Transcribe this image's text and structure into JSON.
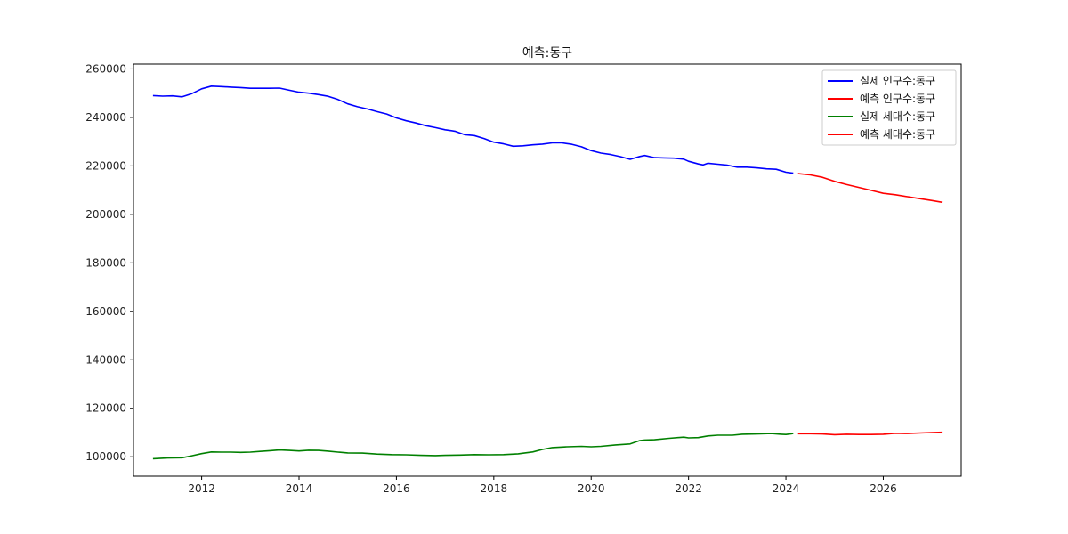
{
  "chart_data": {
    "type": "line",
    "title": "예측:동구",
    "xlabel": "",
    "ylabel": "",
    "xlim": [
      2010.6,
      2027.6
    ],
    "ylim": [
      92000,
      262000
    ],
    "x_ticks": [
      2012,
      2014,
      2016,
      2018,
      2020,
      2022,
      2024,
      2026
    ],
    "x_tick_labels": [
      "2012",
      "2014",
      "2016",
      "2018",
      "2020",
      "2022",
      "2024",
      "2026"
    ],
    "y_ticks": [
      100000,
      120000,
      140000,
      160000,
      180000,
      200000,
      220000,
      240000,
      260000
    ],
    "y_tick_labels": [
      "100000",
      "120000",
      "140000",
      "160000",
      "180000",
      "200000",
      "220000",
      "240000",
      "260000"
    ],
    "grid": false,
    "legend_position": "top-right",
    "series": [
      {
        "name": "실제 인구수:동구",
        "color": "#0000ff",
        "points": [
          [
            2011.0,
            249000
          ],
          [
            2011.2,
            248800
          ],
          [
            2011.4,
            248900
          ],
          [
            2011.6,
            248500
          ],
          [
            2011.8,
            249800
          ],
          [
            2012.0,
            251800
          ],
          [
            2012.2,
            252900
          ],
          [
            2012.4,
            252700
          ],
          [
            2012.6,
            252500
          ],
          [
            2012.8,
            252300
          ],
          [
            2013.0,
            252000
          ],
          [
            2013.2,
            252000
          ],
          [
            2013.4,
            252000
          ],
          [
            2013.6,
            252100
          ],
          [
            2013.8,
            251200
          ],
          [
            2014.0,
            250400
          ],
          [
            2014.2,
            250000
          ],
          [
            2014.4,
            249400
          ],
          [
            2014.6,
            248700
          ],
          [
            2014.8,
            247400
          ],
          [
            2015.0,
            245600
          ],
          [
            2015.2,
            244400
          ],
          [
            2015.4,
            243500
          ],
          [
            2015.6,
            242400
          ],
          [
            2015.8,
            241400
          ],
          [
            2016.0,
            239800
          ],
          [
            2016.2,
            238600
          ],
          [
            2016.4,
            237700
          ],
          [
            2016.6,
            236600
          ],
          [
            2016.8,
            235800
          ],
          [
            2017.0,
            234900
          ],
          [
            2017.2,
            234300
          ],
          [
            2017.4,
            232900
          ],
          [
            2017.6,
            232500
          ],
          [
            2017.8,
            231300
          ],
          [
            2018.0,
            229800
          ],
          [
            2018.2,
            229100
          ],
          [
            2018.4,
            228100
          ],
          [
            2018.6,
            228300
          ],
          [
            2018.8,
            228700
          ],
          [
            2019.0,
            229000
          ],
          [
            2019.2,
            229500
          ],
          [
            2019.4,
            229500
          ],
          [
            2019.6,
            228900
          ],
          [
            2019.8,
            227900
          ],
          [
            2020.0,
            226300
          ],
          [
            2020.2,
            225300
          ],
          [
            2020.4,
            224700
          ],
          [
            2020.6,
            223800
          ],
          [
            2020.8,
            222700
          ],
          [
            2021.0,
            223900
          ],
          [
            2021.1,
            224300
          ],
          [
            2021.3,
            223400
          ],
          [
            2021.5,
            223300
          ],
          [
            2021.7,
            223200
          ],
          [
            2021.9,
            222800
          ],
          [
            2022.0,
            221900
          ],
          [
            2022.2,
            220800
          ],
          [
            2022.3,
            220400
          ],
          [
            2022.4,
            221100
          ],
          [
            2022.6,
            220700
          ],
          [
            2022.8,
            220300
          ],
          [
            2023.0,
            219500
          ],
          [
            2023.2,
            219500
          ],
          [
            2023.4,
            219200
          ],
          [
            2023.6,
            218800
          ],
          [
            2023.8,
            218600
          ],
          [
            2024.0,
            217400
          ],
          [
            2024.15,
            217000
          ]
        ]
      },
      {
        "name": "예측 인구수:동구",
        "color": "#ff0000",
        "points": [
          [
            2024.25,
            216800
          ],
          [
            2024.5,
            216300
          ],
          [
            2024.75,
            215300
          ],
          [
            2025.0,
            213600
          ],
          [
            2025.25,
            212300
          ],
          [
            2025.5,
            211100
          ],
          [
            2025.75,
            209900
          ],
          [
            2026.0,
            208700
          ],
          [
            2026.25,
            208100
          ],
          [
            2026.5,
            207300
          ],
          [
            2026.75,
            206500
          ],
          [
            2027.0,
            205700
          ],
          [
            2027.2,
            205000
          ]
        ]
      },
      {
        "name": "실제 세대수:동구",
        "color": "#008000",
        "points": [
          [
            2011.0,
            99200
          ],
          [
            2011.3,
            99500
          ],
          [
            2011.6,
            99600
          ],
          [
            2011.8,
            100400
          ],
          [
            2012.0,
            101300
          ],
          [
            2012.2,
            102000
          ],
          [
            2012.4,
            101900
          ],
          [
            2012.6,
            101900
          ],
          [
            2012.8,
            101800
          ],
          [
            2013.0,
            101900
          ],
          [
            2013.2,
            102200
          ],
          [
            2013.4,
            102500
          ],
          [
            2013.6,
            102800
          ],
          [
            2013.8,
            102600
          ],
          [
            2014.0,
            102400
          ],
          [
            2014.2,
            102700
          ],
          [
            2014.4,
            102600
          ],
          [
            2014.6,
            102300
          ],
          [
            2014.8,
            101900
          ],
          [
            2015.0,
            101600
          ],
          [
            2015.3,
            101500
          ],
          [
            2015.6,
            101100
          ],
          [
            2015.9,
            100900
          ],
          [
            2016.2,
            100800
          ],
          [
            2016.5,
            100600
          ],
          [
            2016.8,
            100500
          ],
          [
            2017.0,
            100600
          ],
          [
            2017.3,
            100700
          ],
          [
            2017.6,
            100900
          ],
          [
            2017.9,
            100800
          ],
          [
            2018.2,
            100900
          ],
          [
            2018.5,
            101200
          ],
          [
            2018.8,
            102000
          ],
          [
            2019.0,
            103000
          ],
          [
            2019.2,
            103800
          ],
          [
            2019.5,
            104100
          ],
          [
            2019.8,
            104300
          ],
          [
            2020.0,
            104100
          ],
          [
            2020.2,
            104300
          ],
          [
            2020.5,
            104900
          ],
          [
            2020.8,
            105300
          ],
          [
            2021.0,
            106700
          ],
          [
            2021.1,
            106900
          ],
          [
            2021.3,
            107000
          ],
          [
            2021.6,
            107600
          ],
          [
            2021.9,
            108100
          ],
          [
            2022.0,
            107800
          ],
          [
            2022.2,
            107900
          ],
          [
            2022.4,
            108600
          ],
          [
            2022.6,
            108900
          ],
          [
            2022.9,
            108900
          ],
          [
            2023.1,
            109300
          ],
          [
            2023.4,
            109400
          ],
          [
            2023.7,
            109600
          ],
          [
            2023.9,
            109300
          ],
          [
            2024.0,
            109200
          ],
          [
            2024.15,
            109600
          ]
        ]
      },
      {
        "name": "예측 세대수:동구",
        "color": "#ff0000",
        "points": [
          [
            2024.25,
            109500
          ],
          [
            2024.5,
            109500
          ],
          [
            2024.75,
            109400
          ],
          [
            2025.0,
            109100
          ],
          [
            2025.25,
            109300
          ],
          [
            2025.5,
            109200
          ],
          [
            2025.75,
            109200
          ],
          [
            2026.0,
            109300
          ],
          [
            2026.25,
            109700
          ],
          [
            2026.5,
            109600
          ],
          [
            2026.75,
            109800
          ],
          [
            2027.0,
            110000
          ],
          [
            2027.2,
            110100
          ]
        ]
      }
    ]
  }
}
